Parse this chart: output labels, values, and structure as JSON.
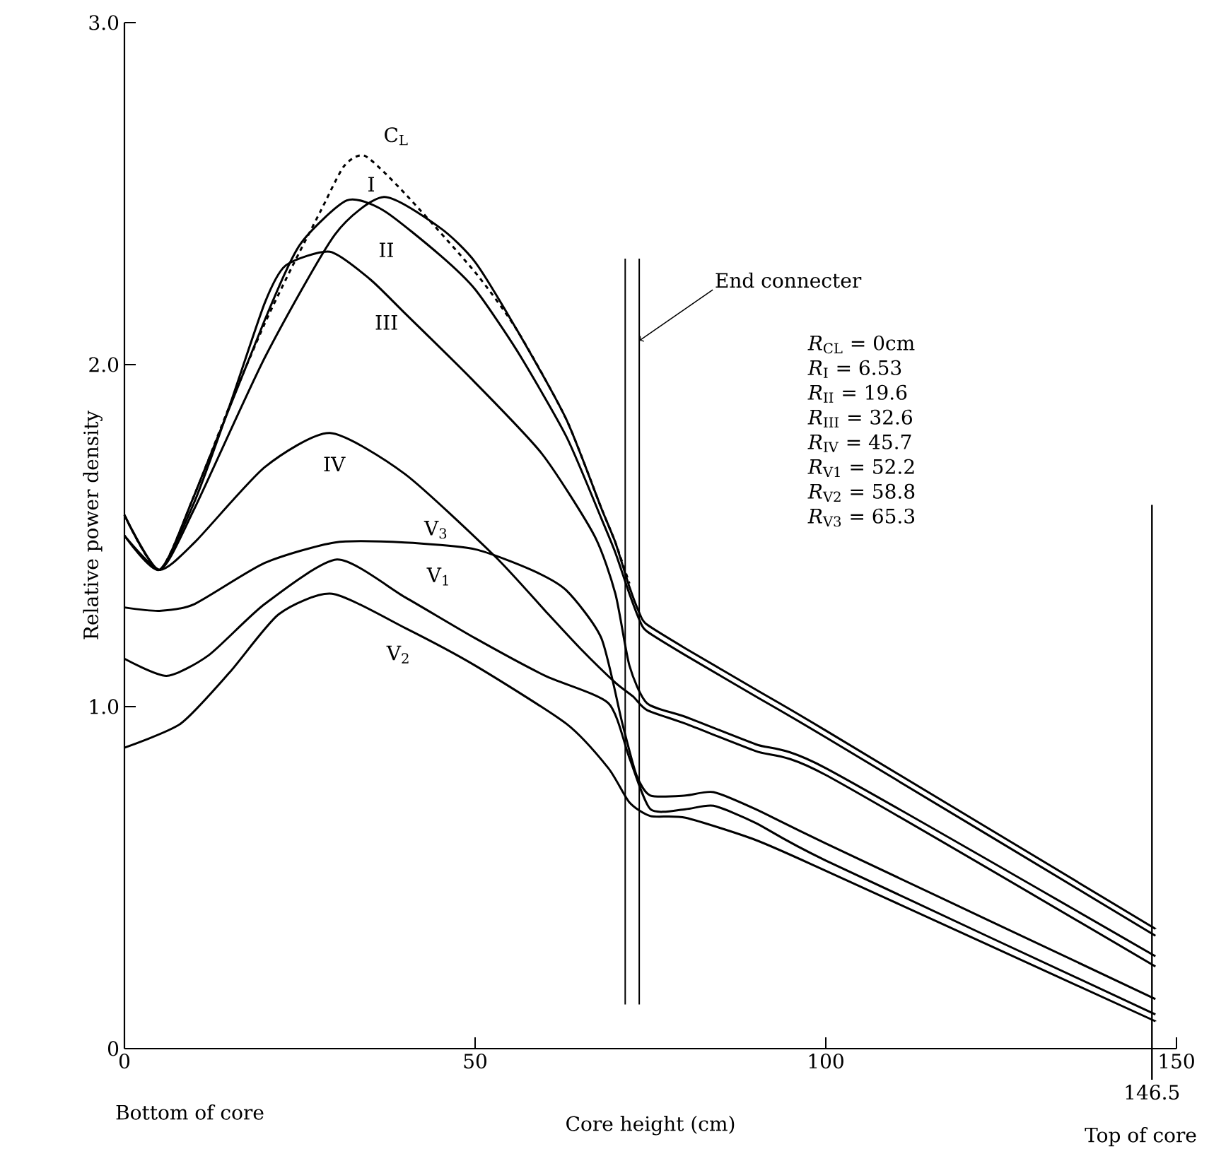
{
  "chart_data": {
    "type": "line",
    "xlabel": "Core height (cm)",
    "ylabel": "Relative power density",
    "xlim": [
      0,
      150
    ],
    "ylim": [
      0,
      3
    ],
    "xticks": [
      0,
      50,
      100,
      150
    ],
    "yticks": [
      0,
      {
        "value": 1,
        "label": "1.0"
      },
      {
        "value": 2,
        "label": "2.0"
      },
      {
        "value": 3,
        "label": "3.0"
      }
    ],
    "series": [
      {
        "name": "C$_{L}$",
        "color": "#000000",
        "line_style": "dashed",
        "x": [
          0,
          5,
          10,
          15,
          20,
          24,
          28,
          31.3,
          34.3,
          40,
          50,
          56,
          63,
          68,
          70,
          72
        ],
        "values": [
          1.56,
          1.4,
          1.62,
          1.88,
          2.12,
          2.29,
          2.45,
          2.58,
          2.61,
          2.5,
          2.27,
          2.1,
          1.84,
          1.58,
          1.48,
          1.36
        ]
      },
      {
        "name": "I",
        "color": "#000000",
        "line_style": "solid",
        "x": [
          0,
          5,
          10,
          20,
          30,
          37,
          45,
          50,
          56,
          63,
          68,
          70,
          72,
          73.5,
          74.5,
          80,
          90,
          100,
          147
        ],
        "values": [
          1.56,
          1.4,
          1.58,
          2.02,
          2.38,
          2.49,
          2.4,
          2.3,
          2.1,
          1.84,
          1.58,
          1.48,
          1.35,
          1.27,
          1.24,
          1.17,
          1.05,
          0.93,
          0.35
        ]
      },
      {
        "name": "II",
        "color": "#000000",
        "line_style": "solid",
        "x": [
          0,
          5,
          10,
          20,
          25,
          31.7,
          37,
          45,
          50,
          56,
          63,
          68,
          70,
          72,
          73.5,
          74.5,
          80,
          90,
          100,
          147
        ],
        "values": [
          1.56,
          1.4,
          1.62,
          2.13,
          2.35,
          2.48,
          2.45,
          2.32,
          2.22,
          2.04,
          1.79,
          1.55,
          1.45,
          1.33,
          1.25,
          1.22,
          1.15,
          1.03,
          0.91,
          0.33
        ]
      },
      {
        "name": "III",
        "color": "#000000",
        "line_style": "solid",
        "x": [
          0,
          5,
          10,
          15,
          20,
          23,
          29.3,
          35,
          40,
          49.4,
          59.5,
          67,
          70,
          72,
          74.5,
          80,
          90,
          100,
          147
        ],
        "values": [
          1.5,
          1.4,
          1.6,
          1.88,
          2.18,
          2.29,
          2.33,
          2.25,
          2.15,
          1.96,
          1.74,
          1.5,
          1.33,
          1.12,
          1.01,
          0.97,
          0.89,
          0.82,
          0.27
        ]
      },
      {
        "name": "IV",
        "color": "#000000",
        "line_style": "solid",
        "x": [
          0,
          5,
          10,
          20,
          29.3,
          40,
          52.8,
          60,
          65,
          70,
          72.5,
          74.5,
          80,
          90,
          100,
          147
        ],
        "values": [
          1.5,
          1.4,
          1.48,
          1.7,
          1.8,
          1.68,
          1.44,
          1.28,
          1.17,
          1.07,
          1.03,
          0.99,
          0.95,
          0.87,
          0.8,
          0.24
        ]
      },
      {
        "name": "V$_{1}$",
        "color": "#000000",
        "line_style": "solid",
        "x": [
          0,
          6,
          12,
          20,
          30.3,
          40,
          50,
          60,
          69,
          72,
          75,
          80,
          84,
          90,
          100,
          147
        ],
        "values": [
          1.14,
          1.09,
          1.15,
          1.3,
          1.43,
          1.32,
          1.2,
          1.09,
          1.01,
          0.85,
          0.7,
          0.7,
          0.71,
          0.66,
          0.55,
          0.1
        ]
      },
      {
        "name": "V$_{2}$",
        "color": "#000000",
        "line_style": "solid",
        "x": [
          0,
          8,
          15,
          22,
          29.6,
          40,
          50,
          63,
          69,
          72,
          75,
          80,
          90,
          100,
          147
        ],
        "values": [
          0.88,
          0.95,
          1.1,
          1.27,
          1.33,
          1.23,
          1.12,
          0.95,
          0.82,
          0.72,
          0.68,
          0.675,
          0.61,
          0.52,
          0.08
        ]
      },
      {
        "name": "V$_{3}$",
        "color": "#000000",
        "line_style": "solid",
        "x": [
          0,
          5,
          10,
          20,
          30,
          40,
          50,
          58,
          63,
          68,
          71,
          73,
          75,
          80,
          84,
          90,
          100,
          147
        ],
        "values": [
          1.29,
          1.28,
          1.3,
          1.42,
          1.48,
          1.48,
          1.46,
          1.4,
          1.34,
          1.2,
          0.95,
          0.8,
          0.74,
          0.74,
          0.75,
          0.7,
          0.6,
          0.145
        ]
      }
    ],
    "ref_lines": [
      {
        "axis": "x",
        "value": 71.4
      },
      {
        "axis": "x",
        "value": 73.4,
        "label": "End connecter"
      },
      {
        "axis": "x",
        "value": 146.5,
        "label": "146.5"
      }
    ],
    "annotations": [
      "Bottom of core",
      "Top of core",
      "*R*$_{CL}$ = 0cm",
      "*R*$_{I}$ = 6.53",
      "*R*$_{II}$ = 19.6",
      "*R*$_{III}$ = 32.6",
      "*R*$_{IV}$ = 45.7",
      "*R*$_{V1}$ = 52.2",
      "*R*$_{V2}$ = 58.8",
      "*R*$_{V3}$ = 65.3"
    ]
  }
}
